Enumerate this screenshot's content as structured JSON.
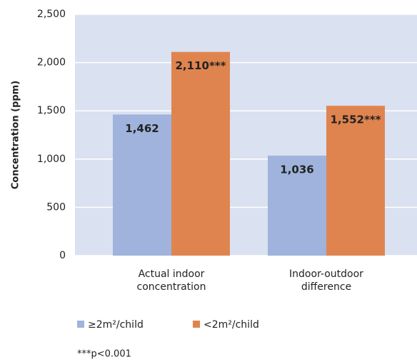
{
  "chart_data": {
    "type": "bar",
    "y_label": "Concentration (ppm)",
    "categories": [
      "Actual indoor concentration",
      "Indoor-outdoor difference"
    ],
    "series": [
      {
        "name": "≥2m²/child",
        "color": "#9fb3dc",
        "values": [
          1462,
          1036
        ],
        "value_labels": [
          "1,462",
          "1,036"
        ]
      },
      {
        "name": "<2m²/child",
        "color": "#e0844f",
        "values": [
          2110,
          1552
        ],
        "value_labels": [
          "2,110***",
          "1,552***"
        ]
      }
    ],
    "ylim": [
      0,
      2500
    ],
    "yticks": [
      0,
      500,
      {
        "value": 1000,
        "label": "1,000"
      },
      {
        "value": 1500,
        "label": "1,500"
      },
      {
        "value": 2000,
        "label": "2,000"
      },
      {
        "value": 2500,
        "label": "2,500"
      }
    ],
    "grid": true,
    "legend": "bottom",
    "footnote": "***p<0.001"
  }
}
